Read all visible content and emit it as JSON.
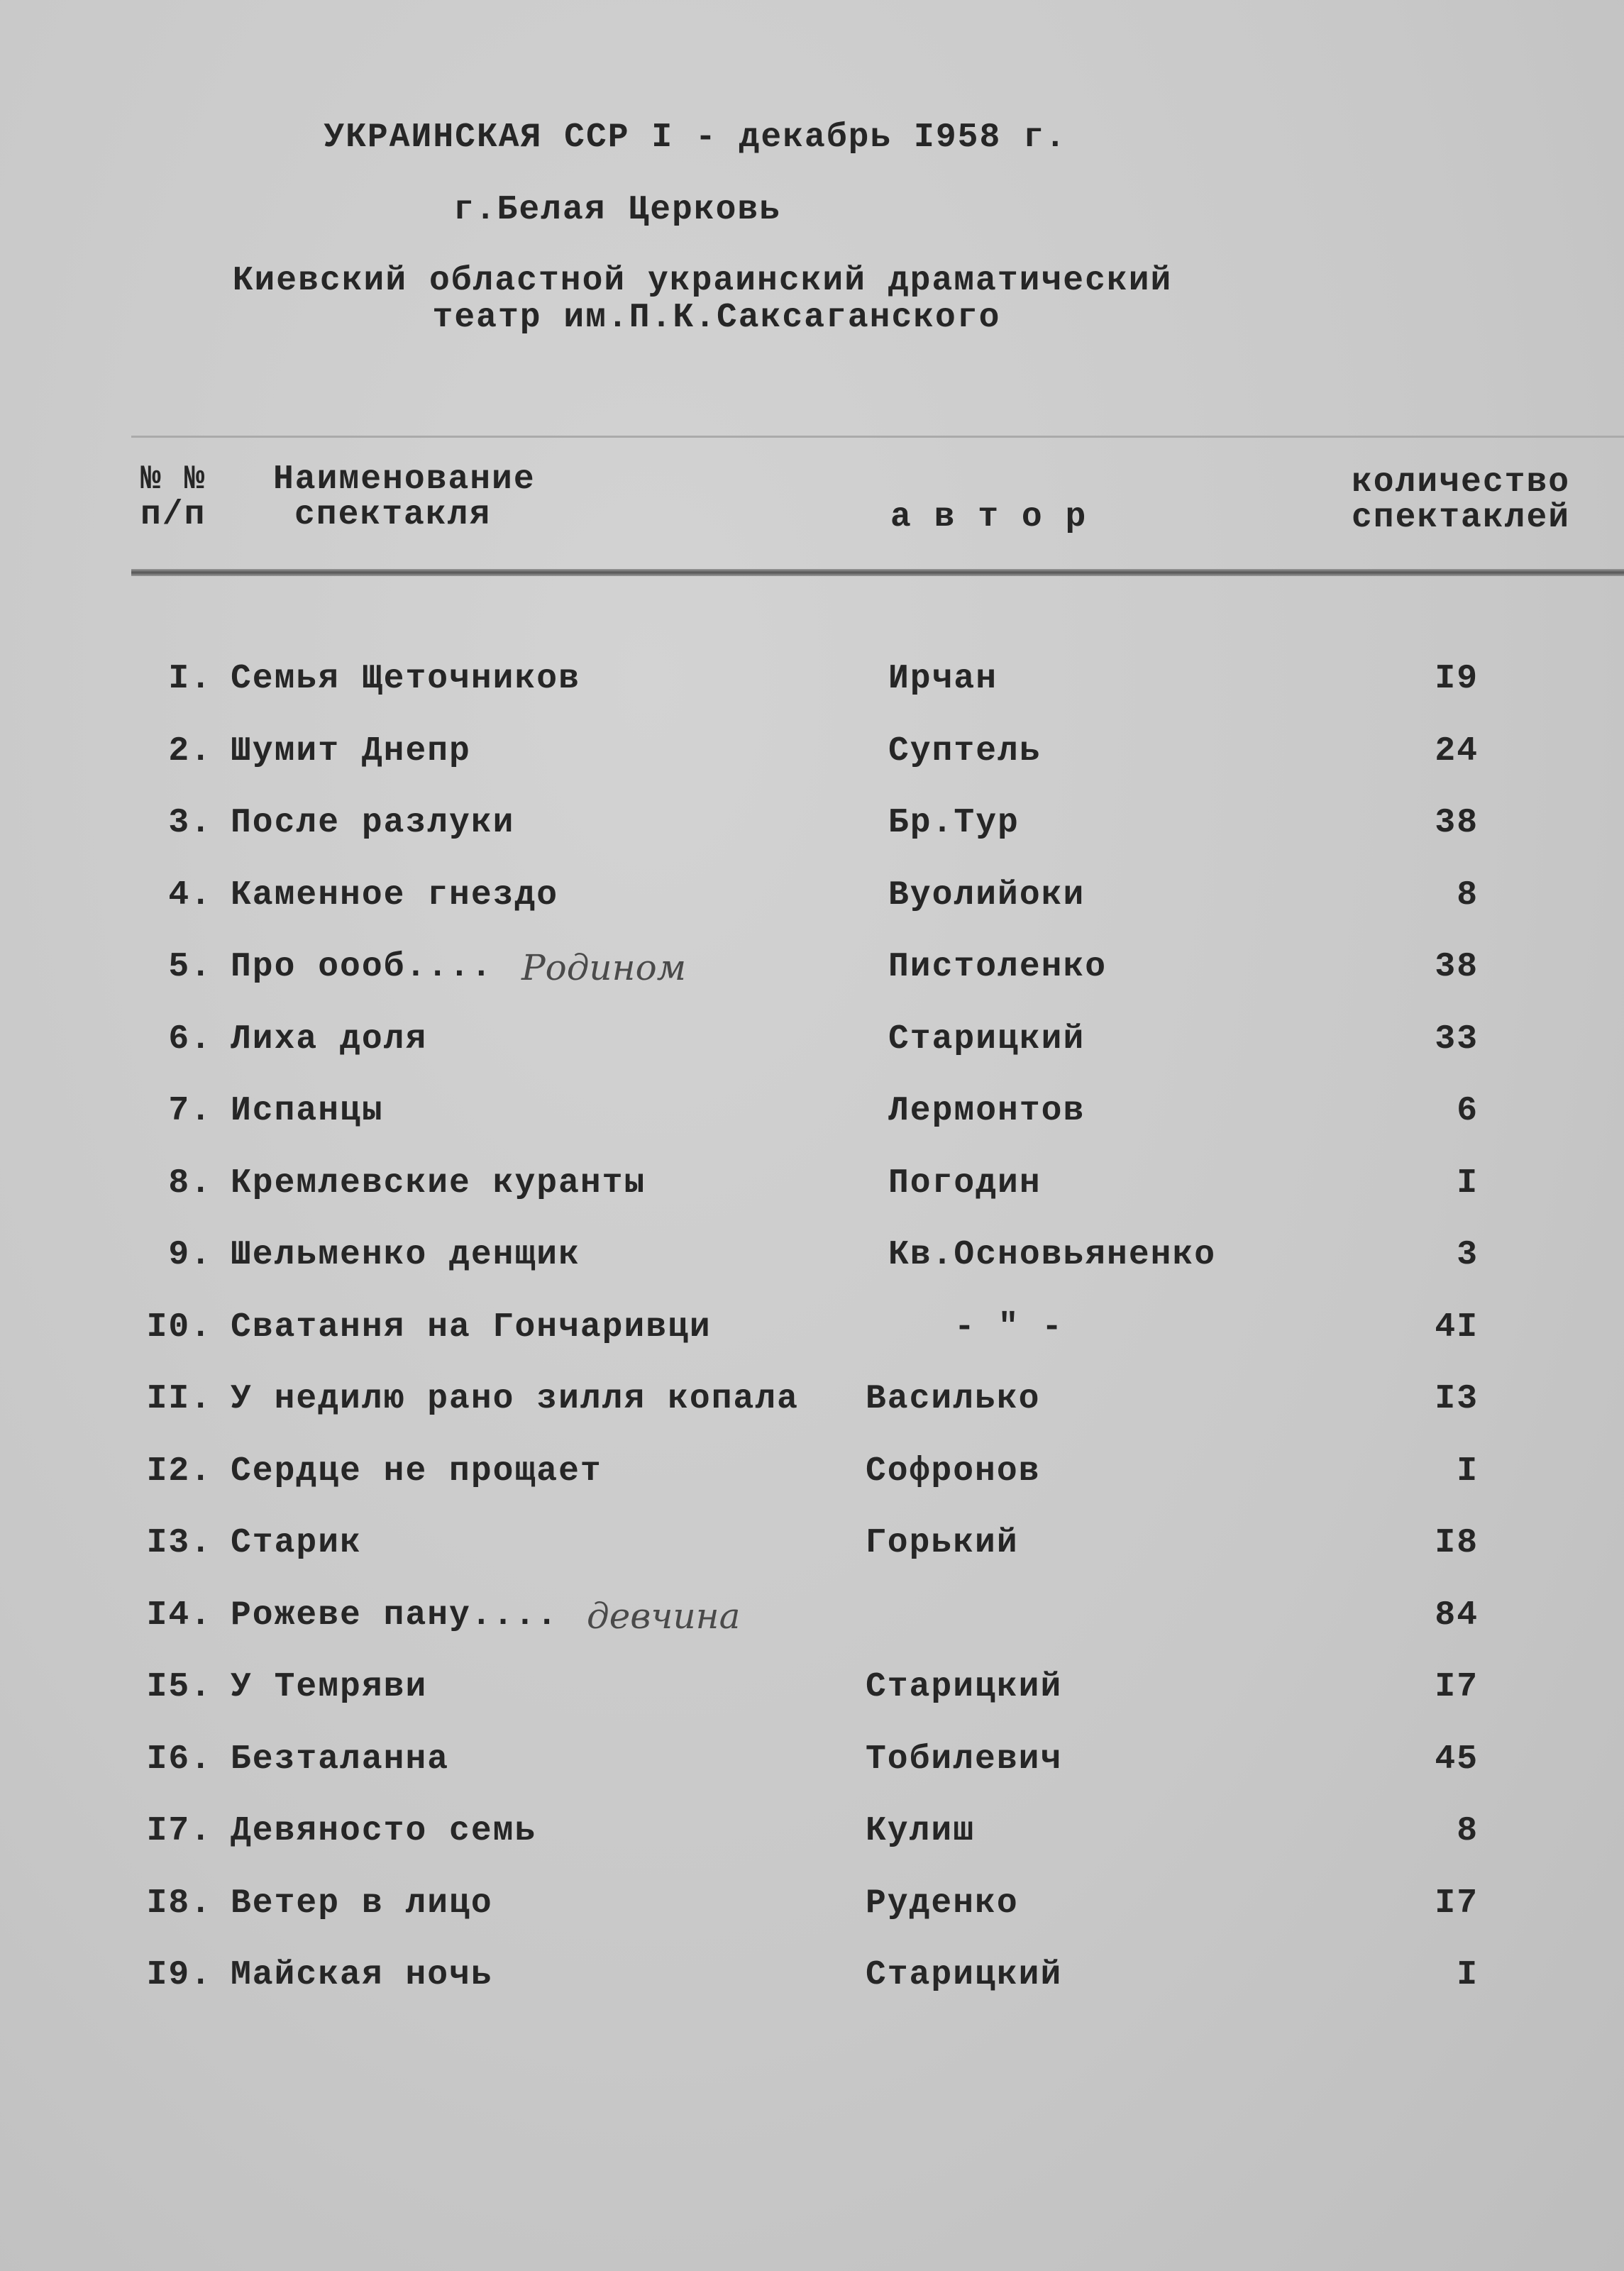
{
  "header": {
    "line1": "УКРАИНСКАЯ ССР I - декабрь I958 г.",
    "line2": "г.Белая Церковь",
    "line3": "Киевский областной украинский драматический",
    "line4": "театр им.П.К.Саксаганского"
  },
  "columns": {
    "num": [
      "№ №",
      "п/п"
    ],
    "title": [
      "Наименование",
      "спектакля"
    ],
    "author": "а в т о р",
    "count": [
      "количество",
      "спектаклей"
    ]
  },
  "rows": [
    {
      "num": "I.",
      "title": "Семья Щеточников",
      "author": "Ирчан",
      "count": "I9"
    },
    {
      "num": "2.",
      "title": "Шумит Днепр",
      "author": "Суптель",
      "count": "24"
    },
    {
      "num": "3.",
      "title": "После разлуки",
      "author": "Бр.Тур",
      "count": "38"
    },
    {
      "num": "4.",
      "title": "Каменное гнездо",
      "author": "Вуолийоки",
      "count": "8"
    },
    {
      "num": "5.",
      "title": "Про ооoб....",
      "author": "Пистоленко",
      "count": "38",
      "handwritten": "Родином"
    },
    {
      "num": "6.",
      "title": "Лиха доля",
      "author": "Старицкий",
      "count": "33"
    },
    {
      "num": "7.",
      "title": "Испанцы",
      "author": "Лермонтов",
      "count": "6"
    },
    {
      "num": "8.",
      "title": "Кремлевские куранты",
      "author": "Погодин",
      "count": "I"
    },
    {
      "num": "9.",
      "title": "Шельменко денщик",
      "author": "Кв.Основьяненко",
      "count": "3"
    },
    {
      "num": "I0.",
      "title": "Сватання на Гончаривци",
      "author": "- \" -",
      "count": "4I"
    },
    {
      "num": "II.",
      "title": "У недилю рано зилля копала",
      "author": "Василько",
      "count": "I3"
    },
    {
      "num": "I2.",
      "title": "Сердце не прощает",
      "author": "Софронов",
      "count": "I"
    },
    {
      "num": "I3.",
      "title": "Старик",
      "author": "Горький",
      "count": "I8"
    },
    {
      "num": "I4.",
      "title": "Рожеве пану....",
      "author": "",
      "count": "84",
      "handwritten": "девчина"
    },
    {
      "num": "I5.",
      "title": "У Темряви",
      "author": "Старицкий",
      "count": "I7"
    },
    {
      "num": "I6.",
      "title": "Безталанна",
      "author": "Тобилевич",
      "count": "45"
    },
    {
      "num": "I7.",
      "title": "Девяносто семь",
      "author": "Кулиш",
      "count": "8"
    },
    {
      "num": "I8.",
      "title": "Ветер в лицо",
      "author": "Руденко",
      "count": "I7"
    },
    {
      "num": "I9.",
      "title": "Майская ночь",
      "author": "Старицкий",
      "count": "I"
    }
  ]
}
